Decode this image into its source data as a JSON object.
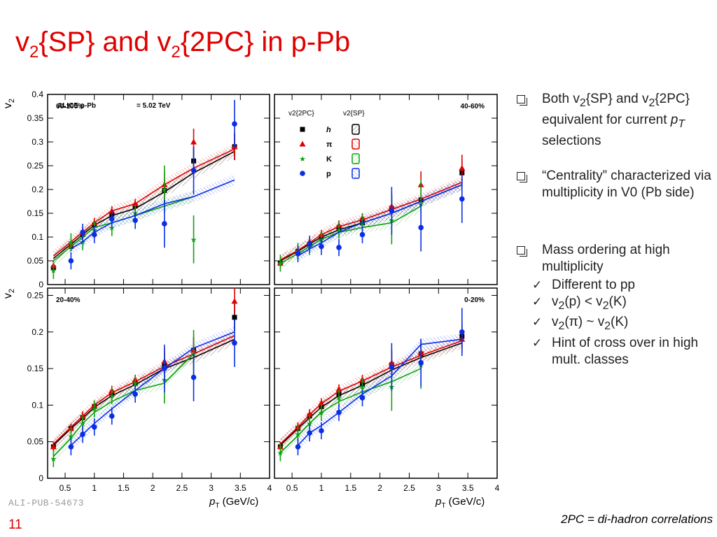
{
  "slide": {
    "title_parts": [
      "v",
      "2",
      "{SP} and v",
      "2",
      "{2PC} in p-Pb"
    ],
    "ali_id": "ALI-PUB-54673",
    "page_number": "11",
    "footnote": "2PC = di-hadron correlations"
  },
  "bullets": [
    {
      "parts": [
        "Both v",
        "2",
        "{SP} and v",
        "2",
        "{2PC} equivalent for current ",
        "p",
        "T",
        " selections"
      ]
    },
    {
      "parts": [
        "“Centrality” characterized via multiplicity in V0 (Pb side)"
      ]
    },
    {
      "parts": [
        "Mass ordering at high multiplicity"
      ],
      "sub": [
        {
          "parts": [
            "Different to pp"
          ]
        },
        {
          "parts": [
            "v",
            "2",
            "(p) < v",
            "2",
            "(K)"
          ]
        },
        {
          "parts": [
            "v",
            "2",
            "(π) ~ v",
            "2",
            "(K)"
          ]
        },
        {
          "parts": [
            "Hint of cross over in high mult. classes"
          ]
        }
      ]
    }
  ],
  "chart_data": {
    "type": "scatter",
    "collision_label": "ALICE p-Pb",
    "energy_label": "= 5.02 TeV",
    "xlabel": "(GeV/c)",
    "xlabel_var": "p",
    "xlabel_sub": "T",
    "ylabel": "v",
    "ylabel_sub": "2",
    "xlim": [
      0.2,
      4.0
    ],
    "x_ticks": [
      "0.5",
      "1",
      "1.5",
      "2",
      "2.5",
      "3",
      "3.5",
      "4"
    ],
    "legend": {
      "col1": "v2{2PC}",
      "col2": "v2{SP}",
      "entries": [
        {
          "label": "h",
          "color": "#000000",
          "marker": "square"
        },
        {
          "label": "π",
          "color": "#e00000",
          "marker": "triangle"
        },
        {
          "label": "K",
          "color": "#10a010",
          "marker": "star"
        },
        {
          "label": "p",
          "color": "#0a2ee6",
          "marker": "circle"
        }
      ]
    },
    "panels": [
      {
        "label": "60-100%",
        "ylim": [
          0,
          0.4
        ],
        "y_ticks": [
          "0",
          "0.05",
          "0.1",
          "0.15",
          "0.2",
          "0.25",
          "0.3",
          "0.35",
          "0.4"
        ],
        "series": [
          {
            "name": "h",
            "x": [
              0.3,
              0.6,
              0.8,
              1.0,
              1.3,
              1.7,
              2.2,
              2.7,
              3.4
            ],
            "y": [
              0.035,
              0.08,
              0.105,
              0.125,
              0.148,
              0.165,
              0.198,
              0.26,
              0.29
            ],
            "sp": [
              0.055,
              0.085,
              0.105,
              0.125,
              0.145,
              0.16,
              0.195,
              0.235,
              0.28
            ]
          },
          {
            "name": "π",
            "x": [
              0.3,
              0.6,
              0.8,
              1.0,
              1.3,
              1.7,
              2.2,
              2.7,
              3.4
            ],
            "y": [
              0.04,
              0.085,
              0.11,
              0.13,
              0.155,
              0.17,
              0.21,
              0.3,
              0.29
            ],
            "sp": [
              0.06,
              0.09,
              0.11,
              0.13,
              0.155,
              0.17,
              0.21,
              0.245,
              0.285
            ]
          },
          {
            "name": "K",
            "x": [
              0.3,
              0.6,
              0.8,
              1.0,
              1.3,
              1.7,
              2.2,
              2.7
            ],
            "y": [
              0.03,
              0.09,
              0.09,
              0.115,
              0.12,
              0.15,
              0.2,
              0.095
            ],
            "sp": [
              0.05,
              0.08,
              0.1,
              0.12,
              0.13,
              0.145,
              0.165,
              0.185
            ]
          },
          {
            "name": "p",
            "x": [
              0.6,
              0.8,
              1.0,
              1.3,
              1.7,
              2.2,
              2.7,
              3.4
            ],
            "y": [
              0.05,
              0.11,
              0.105,
              0.138,
              0.135,
              0.128,
              0.24,
              0.338
            ],
            "sp": [
              0.075,
              0.09,
              0.11,
              0.13,
              0.145,
              0.17,
              0.185,
              0.22
            ]
          }
        ]
      },
      {
        "label": "40-60%",
        "ylim": [
          0,
          0.4
        ],
        "y_ticks": [
          "0",
          "0.05",
          "0.1",
          "0.15",
          "0.2",
          "0.25",
          "0.3",
          "0.35",
          "0.4"
        ],
        "series": [
          {
            "name": "h",
            "x": [
              0.3,
              0.6,
              0.8,
              1.0,
              1.3,
              1.7,
              2.2,
              2.7,
              3.4
            ],
            "y": [
              0.045,
              0.07,
              0.085,
              0.1,
              0.118,
              0.13,
              0.16,
              0.178,
              0.235
            ],
            "sp": [
              0.05,
              0.07,
              0.085,
              0.1,
              0.115,
              0.13,
              0.15,
              0.175,
              0.21
            ]
          },
          {
            "name": "π",
            "x": [
              0.3,
              0.6,
              0.8,
              1.0,
              1.3,
              1.7,
              2.2,
              2.7,
              3.4
            ],
            "y": [
              0.045,
              0.072,
              0.09,
              0.105,
              0.125,
              0.14,
              0.165,
              0.21,
              0.245
            ],
            "sp": [
              0.052,
              0.072,
              0.088,
              0.105,
              0.122,
              0.136,
              0.158,
              0.18,
              0.215
            ]
          },
          {
            "name": "K",
            "x": [
              0.3,
              0.6,
              0.8,
              1.0,
              1.3,
              1.7,
              2.2,
              2.7
            ],
            "y": [
              0.045,
              0.07,
              0.08,
              0.095,
              0.115,
              0.13,
              0.135,
              0.17
            ],
            "sp": [
              0.045,
              0.065,
              0.08,
              0.095,
              0.11,
              0.12,
              0.13,
              0.165
            ]
          },
          {
            "name": "p",
            "x": [
              0.6,
              0.8,
              1.0,
              1.3,
              1.7,
              2.2,
              2.7,
              3.4
            ],
            "y": [
              0.065,
              0.085,
              0.08,
              0.078,
              0.105,
              0.155,
              0.12,
              0.18
            ],
            "sp": [
              0.06,
              0.075,
              0.088,
              0.11,
              0.13,
              0.15,
              0.175,
              0.21
            ]
          }
        ]
      },
      {
        "label": "20-40%",
        "ylim": [
          0,
          0.26
        ],
        "y_ticks": [
          "0",
          "0.05",
          "0.1",
          "0.15",
          "0.2",
          "0.25"
        ],
        "series": [
          {
            "name": "h",
            "x": [
              0.3,
              0.6,
              0.8,
              1.0,
              1.3,
              1.7,
              2.2,
              2.7,
              3.4
            ],
            "y": [
              0.043,
              0.068,
              0.083,
              0.098,
              0.115,
              0.13,
              0.155,
              0.175,
              0.22
            ],
            "sp": [
              0.045,
              0.068,
              0.082,
              0.097,
              0.113,
              0.128,
              0.15,
              0.165,
              0.19
            ]
          },
          {
            "name": "π",
            "x": [
              0.3,
              0.6,
              0.8,
              1.0,
              1.3,
              1.7,
              2.2,
              2.7,
              3.4
            ],
            "y": [
              0.043,
              0.068,
              0.085,
              0.1,
              0.12,
              0.135,
              0.16,
              0.175,
              0.242
            ],
            "sp": [
              0.047,
              0.07,
              0.085,
              0.1,
              0.117,
              0.132,
              0.153,
              0.17,
              0.195
            ]
          },
          {
            "name": "K",
            "x": [
              0.3,
              0.6,
              0.8,
              1.0,
              1.3,
              1.7,
              2.2,
              2.7
            ],
            "y": [
              0.027,
              0.058,
              0.075,
              0.095,
              0.113,
              0.13,
              0.135,
              0.17
            ],
            "sp": [
              0.03,
              0.055,
              0.075,
              0.09,
              0.105,
              0.12,
              0.13,
              0.17
            ]
          },
          {
            "name": "p",
            "x": [
              0.6,
              0.8,
              1.0,
              1.3,
              1.7,
              2.2,
              2.7,
              3.4
            ],
            "y": [
              0.043,
              0.06,
              0.07,
              0.085,
              0.115,
              0.15,
              0.138,
              0.185
            ],
            "sp": [
              0.045,
              0.06,
              0.075,
              0.095,
              0.12,
              0.15,
              0.178,
              0.2
            ]
          }
        ]
      },
      {
        "label": "0-20%",
        "ylim": [
          0,
          0.26
        ],
        "y_ticks": [
          "0",
          "0.05",
          "0.1",
          "0.15",
          "0.2",
          "0.25"
        ],
        "series": [
          {
            "name": "h",
            "x": [
              0.3,
              0.6,
              0.8,
              1.0,
              1.3,
              1.7,
              2.2,
              2.7,
              3.4
            ],
            "y": [
              0.043,
              0.068,
              0.085,
              0.098,
              0.115,
              0.128,
              0.155,
              0.17,
              0.194
            ],
            "sp": [
              0.045,
              0.068,
              0.083,
              0.097,
              0.113,
              0.127,
              0.148,
              0.165,
              0.185
            ]
          },
          {
            "name": "π",
            "x": [
              0.3,
              0.6,
              0.8,
              1.0,
              1.3,
              1.7,
              2.2,
              2.7,
              3.4
            ],
            "y": [
              0.043,
              0.07,
              0.088,
              0.103,
              0.122,
              0.135,
              0.158,
              0.172,
              0.19
            ],
            "sp": [
              0.047,
              0.07,
              0.087,
              0.102,
              0.119,
              0.133,
              0.152,
              0.168,
              0.188
            ]
          },
          {
            "name": "K",
            "x": [
              0.3,
              0.6,
              0.8,
              1.0,
              1.3,
              1.7,
              2.2,
              2.7
            ],
            "y": [
              0.035,
              0.06,
              0.075,
              0.09,
              0.11,
              0.125,
              0.125,
              0.155
            ],
            "sp": [
              0.035,
              0.058,
              0.075,
              0.09,
              0.105,
              0.118,
              0.132,
              0.15
            ]
          },
          {
            "name": "p",
            "x": [
              0.6,
              0.8,
              1.0,
              1.3,
              1.7,
              2.2,
              2.7,
              3.4
            ],
            "y": [
              0.043,
              0.062,
              0.065,
              0.09,
              0.11,
              0.152,
              0.158,
              0.2
            ],
            "sp": [
              0.045,
              0.062,
              0.072,
              0.09,
              0.115,
              0.14,
              0.183,
              0.19
            ]
          }
        ]
      }
    ]
  }
}
